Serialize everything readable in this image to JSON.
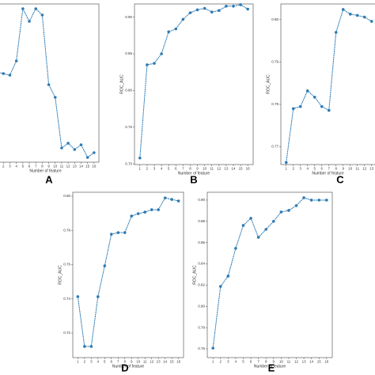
{
  "chart_data": [
    {
      "type": "line",
      "panel_label": "A",
      "x_label": "Number of feature",
      "y_label": "ROC_AUC",
      "x": [
        1,
        2,
        3,
        4,
        5,
        6,
        7,
        8,
        9,
        10,
        11,
        12,
        13,
        14,
        15,
        16
      ],
      "series": [
        {
          "color": "#2e7bb4",
          "values": [
            0.757,
            0.756,
            0.755,
            0.764,
            0.797,
            0.789,
            0.797,
            0.793,
            0.749,
            0.741,
            0.709,
            0.712,
            0.708,
            0.711,
            0.703,
            0.706
          ]
        }
      ],
      "xlim": [
        0.25,
        16.75
      ],
      "ylim": [
        0.7,
        0.8
      ],
      "xticks": [
        1,
        2,
        3,
        4,
        5,
        6,
        7,
        8,
        9,
        10,
        11,
        12,
        13,
        14,
        15,
        16
      ],
      "yticks": []
    },
    {
      "type": "line",
      "panel_label": "B",
      "x_label": "Number of feature",
      "y_label": "ROC_AUC",
      "x": [
        1,
        2,
        3,
        4,
        5,
        6,
        7,
        8,
        9,
        10,
        11,
        12,
        13,
        14,
        15,
        16
      ],
      "series": [
        {
          "color": "#2e7bb4",
          "values": [
            0.708,
            0.835,
            0.837,
            0.85,
            0.88,
            0.884,
            0.897,
            0.906,
            0.91,
            0.912,
            0.907,
            0.909,
            0.915,
            0.915,
            0.917,
            0.911
          ]
        }
      ],
      "xlim": [
        0.25,
        16.75
      ],
      "ylim": [
        0.699,
        0.918
      ],
      "xticks": [
        1,
        2,
        3,
        4,
        5,
        6,
        7,
        8,
        9,
        10,
        11,
        12,
        13,
        14,
        15,
        16
      ],
      "yticks": [
        {
          "value": 0.7,
          "label": "0.70"
        },
        0.75,
        {
          "value": 0.8,
          "label": "0.80"
        },
        0.85,
        {
          "value": 0.9,
          "label": "0.90"
        }
      ]
    },
    {
      "type": "line",
      "panel_label": "C",
      "x_label": "Number of feature",
      "y_label": "ROC_AUC",
      "x": [
        1,
        2,
        3,
        4,
        5,
        6,
        7,
        8,
        9,
        10,
        11,
        12,
        13
      ],
      "series": [
        {
          "color": "#2e7bb4",
          "values": [
            0.7663,
            0.779,
            0.7795,
            0.7832,
            0.7817,
            0.7795,
            0.7786,
            0.797,
            0.8024,
            0.8013,
            0.801,
            0.8006,
            0.7996
          ]
        }
      ],
      "xlim": [
        0.25,
        13.75
      ],
      "ylim": [
        0.7658,
        0.8037
      ],
      "xticks": [
        1,
        2,
        3,
        4,
        5,
        6,
        7,
        8,
        9,
        10,
        11,
        12,
        13
      ],
      "yticks": [
        0.77,
        0.78,
        0.79,
        {
          "value": 0.8,
          "label": "0.80"
        }
      ]
    },
    {
      "type": "line",
      "panel_label": "D",
      "x_label": "Number of feature",
      "y_label": "ROC_AUC",
      "x": [
        1,
        2,
        3,
        4,
        5,
        6,
        7,
        8,
        9,
        10,
        11,
        12,
        13,
        14,
        15,
        16
      ],
      "series": [
        {
          "color": "#2e7bb4",
          "values": [
            0.7413,
            0.7122,
            0.7122,
            0.7413,
            0.7593,
            0.7778,
            0.7787,
            0.7787,
            0.7884,
            0.7898,
            0.7907,
            0.7921,
            0.7921,
            0.799,
            0.7981,
            0.7972
          ]
        }
      ],
      "xlim": [
        0.25,
        16.75
      ],
      "ylim": [
        0.7057,
        0.8023
      ],
      "xticks": [
        1,
        2,
        3,
        4,
        5,
        6,
        7,
        8,
        9,
        10,
        11,
        12,
        13,
        14,
        15,
        16
      ],
      "yticks": [
        0.72,
        0.74,
        0.76,
        0.78,
        {
          "value": 0.8,
          "label": "0.80"
        }
      ]
    },
    {
      "type": "line",
      "panel_label": "E",
      "x_label": "Number of feature",
      "y_label": "ROC_AUC",
      "x": [
        1,
        2,
        3,
        4,
        5,
        6,
        7,
        8,
        9,
        10,
        11,
        12,
        13,
        14,
        15,
        16
      ],
      "series": [
        {
          "color": "#2e7bb4",
          "values": [
            0.7607,
            0.8188,
            0.8285,
            0.8546,
            0.8762,
            0.8829,
            0.865,
            0.8725,
            0.88,
            0.8888,
            0.8903,
            0.8948,
            0.9022,
            0.9,
            0.9,
            0.9
          ]
        }
      ],
      "xlim": [
        0.25,
        16.75
      ],
      "ylim": [
        0.7518,
        0.9074
      ],
      "xticks": [
        1,
        2,
        3,
        4,
        5,
        6,
        7,
        8,
        9,
        10,
        11,
        12,
        13,
        14,
        15,
        16
      ],
      "yticks": [
        0.76,
        0.78,
        {
          "value": 0.8,
          "label": "0.80"
        },
        0.82,
        0.84,
        0.86,
        0.88,
        {
          "value": 0.9,
          "label": "0.90"
        }
      ]
    }
  ]
}
